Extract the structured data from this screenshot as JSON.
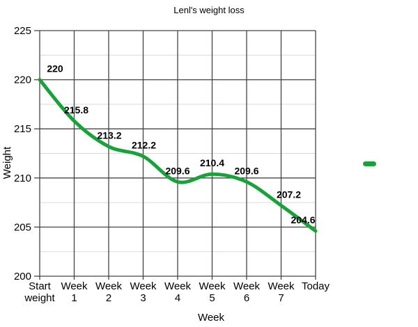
{
  "chart_data": {
    "type": "line",
    "title": "Lenl's weight loss",
    "xlabel": "Week",
    "ylabel": "Weight",
    "categories": [
      "Start weight",
      "Week 1",
      "Week 2",
      "Week 3",
      "Week 4",
      "Week 5",
      "Week 6",
      "Week 7",
      "Today"
    ],
    "series": [
      {
        "name": "",
        "values": [
          220,
          215.8,
          213.2,
          212.2,
          209.6,
          210.4,
          209.6,
          207.2,
          204.6
        ],
        "color": "#17a23a"
      }
    ],
    "data_labels": [
      "220",
      "215.8",
      "213.2",
      "212.2",
      "209.6",
      "210.4",
      "209.6",
      "207.2",
      "204.6"
    ],
    "ylim": [
      200,
      225
    ],
    "y_major_step": 5,
    "y_minor_step": 2.5,
    "y_tick_labels": [
      "200",
      "205",
      "210",
      "215",
      "220",
      "225"
    ],
    "grid": "major-dark-minor-light",
    "smoothed": true,
    "legend_position": "right",
    "legend_text": "",
    "label_dx": [
      22,
      3,
      1,
      1,
      0,
      0,
      0,
      11,
      -18
    ],
    "label_dy": -11,
    "colors": {
      "line": "#17a23a",
      "grid_major": "#444444",
      "grid_minor": "#d9d9d9",
      "axis": "#444444",
      "text": "#000000",
      "background": "#ffffff"
    }
  }
}
